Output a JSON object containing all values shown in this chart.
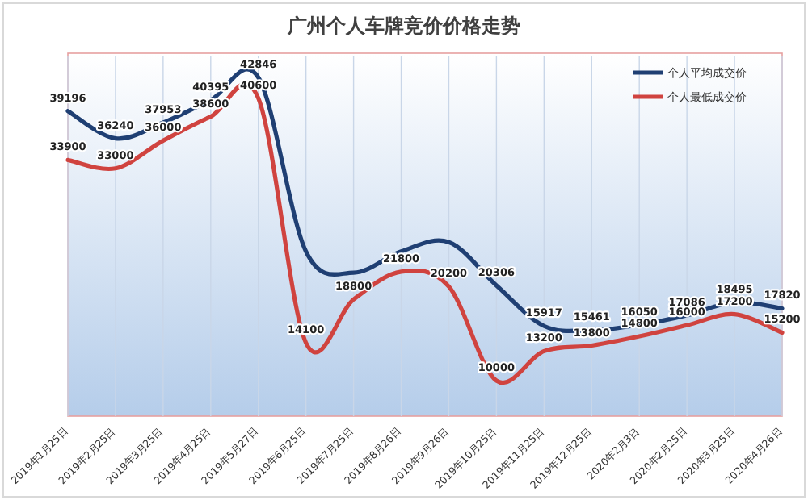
{
  "chart_data": {
    "type": "line",
    "title": "广州个人车牌竞价价格走势",
    "categories": [
      "2019年1月25日",
      "2019年2月25日",
      "2019年3月25日",
      "2019年4月25日",
      "2019年5月27日",
      "2019年6月25日",
      "2019年7月25日",
      "2019年8月26日",
      "2019年9月26日",
      "2019年10月25日",
      "2019年11月25日",
      "2019年12月25日",
      "2020年2月3日",
      "2020年2月25日",
      "2020年3月25日",
      "2020年4月26日"
    ],
    "series": [
      {
        "name": "个人平均成交价",
        "color": "#1f3f73",
        "values": [
          39196,
          36240,
          37953,
          40395,
          42846,
          24000,
          21700,
          24000,
          25000,
          20306,
          15917,
          15461,
          16050,
          17086,
          18495,
          17820
        ],
        "value_labels": [
          "39196",
          "36240",
          "37953",
          "40395",
          "42846",
          null,
          null,
          null,
          null,
          "20306",
          "15917",
          "15461",
          "16050",
          "17086",
          "18495",
          "17820"
        ]
      },
      {
        "name": "个人最低成交价",
        "color": "#d0433f",
        "values": [
          33900,
          33000,
          36000,
          38600,
          40600,
          14100,
          18800,
          21800,
          20200,
          10000,
          13200,
          13800,
          14800,
          16000,
          17200,
          15200
        ],
        "value_labels": [
          "33900",
          "33000",
          "36000",
          "38600",
          "40600",
          "14100",
          "18800",
          "21800",
          "20200",
          "10000",
          "13200",
          "13800",
          "14800",
          "16000",
          "17200",
          "15200"
        ]
      }
    ],
    "grid": "x",
    "legend": "top right",
    "marker": "none",
    "line_style": "solid"
  }
}
